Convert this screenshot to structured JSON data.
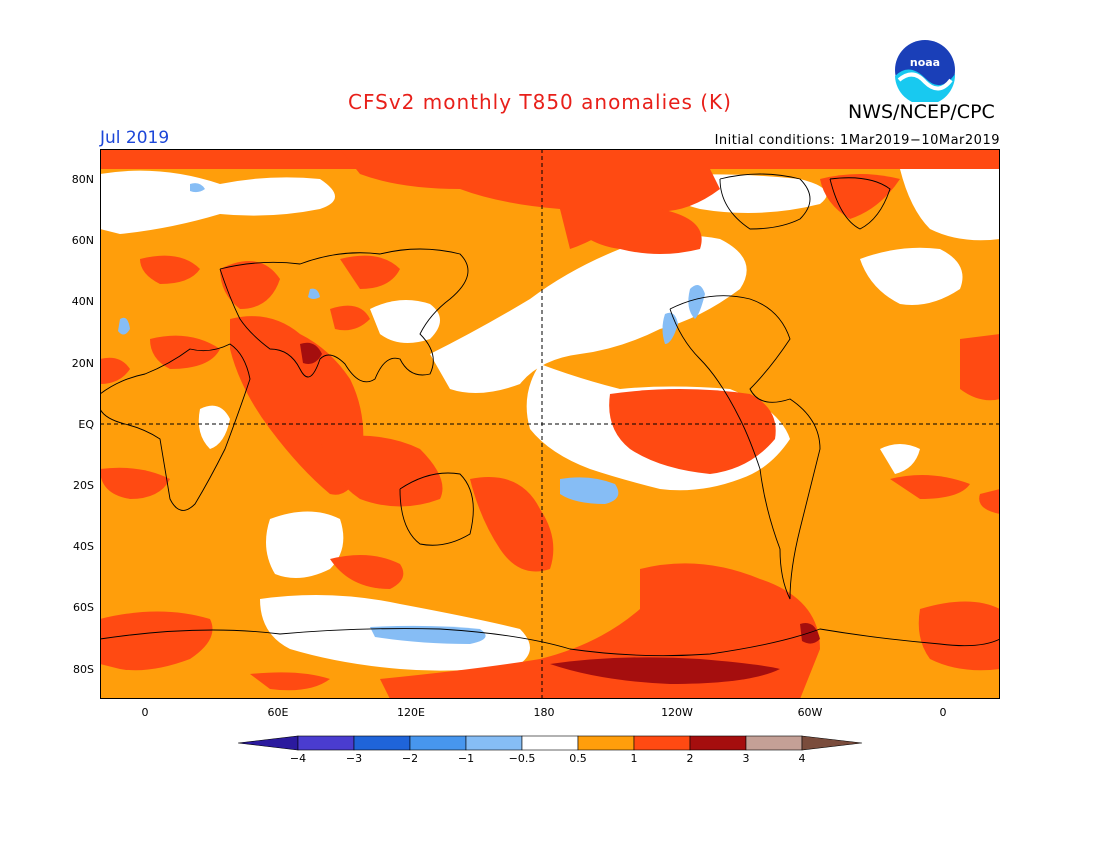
{
  "title": "CFSv2 monthly T850 anomalies (K)",
  "agency": "NWS/NCEP/CPC",
  "logo": {
    "text": "noaa"
  },
  "month_label": "Jul 2019",
  "initial_conditions": "Initial conditions: 1Mar2019−10Mar2019",
  "lat_labels": [
    "80N",
    "60N",
    "40N",
    "20N",
    "EQ",
    "20S",
    "40S",
    "60S",
    "80S"
  ],
  "lon_labels": [
    "0",
    "60E",
    "120E",
    "180",
    "120W",
    "60W",
    "0"
  ],
  "colorbar": {
    "labels": [
      "−4",
      "−3",
      "−2",
      "−1",
      "−0.5",
      "0.5",
      "1",
      "2",
      "3",
      "4"
    ],
    "colors": [
      "#2b1a9e",
      "#4a3ccf",
      "#1f64d9",
      "#4796ee",
      "#86bdf5",
      "#ffffff",
      "#ff9e0b",
      "#ff4a12",
      "#a50e0e",
      "#c4a096",
      "#7a4c3c"
    ]
  },
  "colors": {
    "title": "#e8201a",
    "month": "#1c46d8",
    "orange": "#ff9e0b",
    "red": "#ff4a12",
    "dark_red": "#a50e0e",
    "blue": "#86bdf5"
  }
}
